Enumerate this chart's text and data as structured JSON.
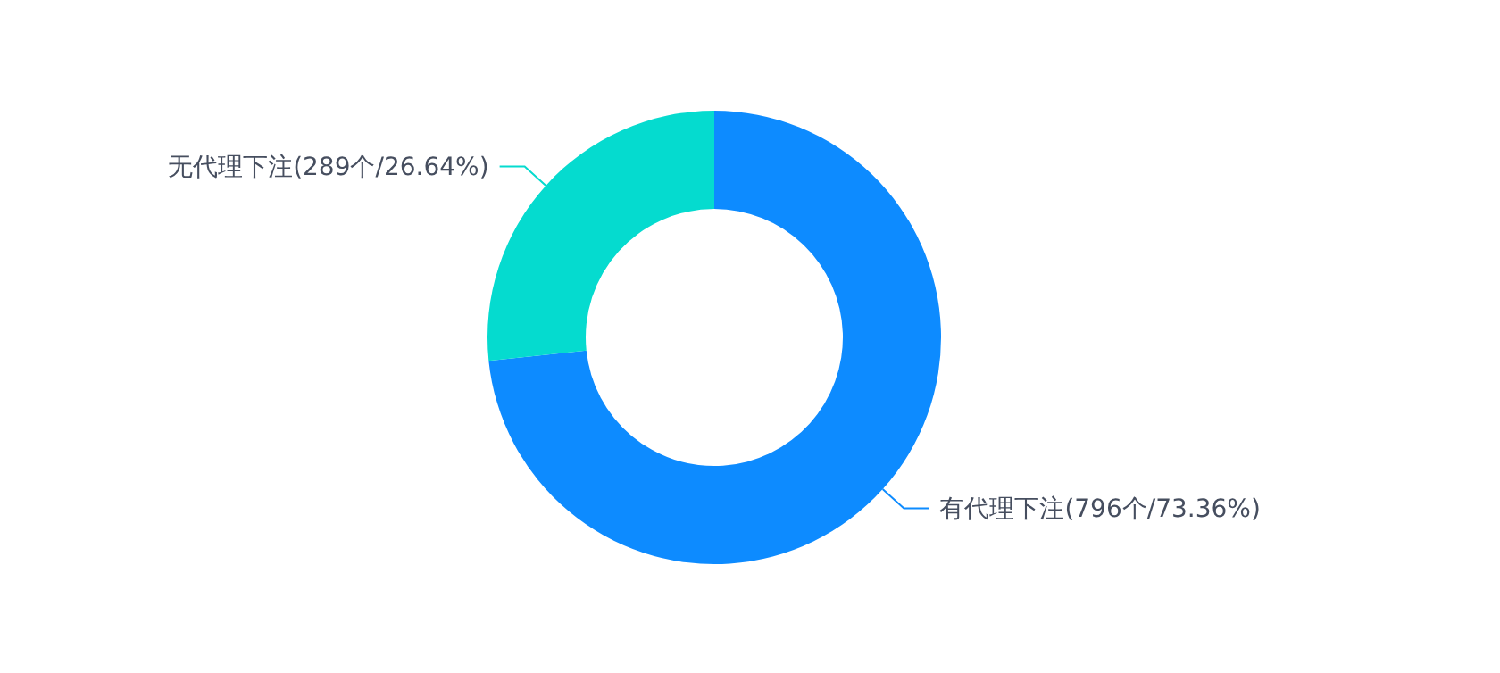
{
  "chart_data": {
    "type": "donut",
    "categories": [
      "有代理下注(796个/73.36%)",
      "无代理下注(289个/26.64%)"
    ],
    "values": [
      73.36,
      26.64
    ],
    "colors": [
      "#0d8bff",
      "#05dbcf"
    ]
  }
}
